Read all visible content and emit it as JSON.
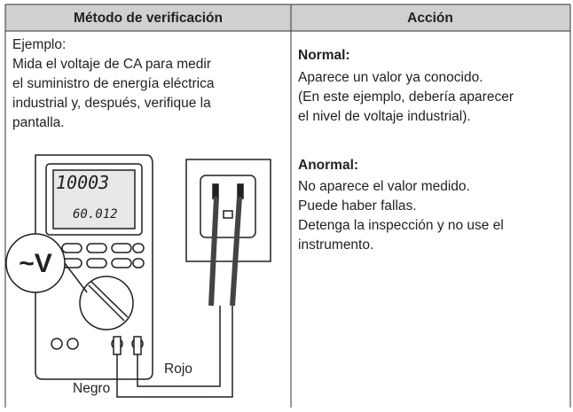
{
  "table": {
    "header": [
      "Método de verificación",
      "Acción"
    ],
    "left": {
      "intro": "Ejemplo:",
      "lines": [
        "Mida el voltaje de CA para medir",
        "el suministro de energía eléctrica",
        "industrial y, después, verifique la",
        "pantalla."
      ],
      "illustration": {
        "display_main": "10003",
        "display_sub": "60.012",
        "function": "~V",
        "red_lead": "Rojo",
        "black_lead": "Negro"
      }
    },
    "right": {
      "normal": {
        "title": "Normal:",
        "lines": [
          "Aparece un valor ya conocido.",
          "(En este ejemplo, debería aparecer",
          "el nivel de voltaje industrial)."
        ]
      },
      "abnormal": {
        "title": "Anormal:",
        "lines": [
          "No aparece el valor medido.",
          "Puede haber fallas.",
          "Detenga la inspección y no use el",
          "instrumento."
        ]
      }
    }
  }
}
